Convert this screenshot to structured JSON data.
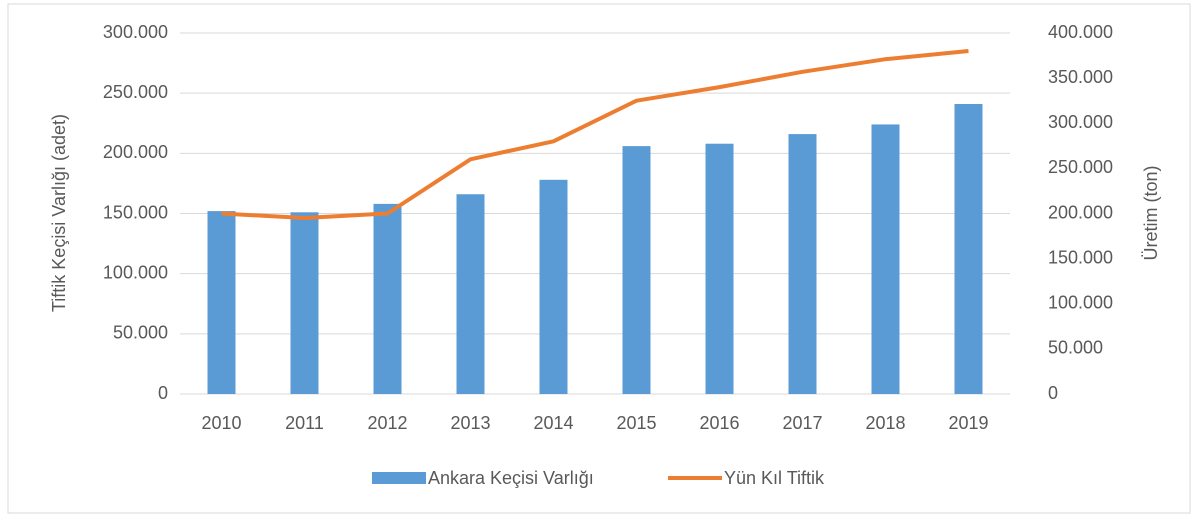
{
  "chart_data": {
    "type": "bar_line",
    "categories": [
      "2010",
      "2011",
      "2012",
      "2013",
      "2014",
      "2015",
      "2016",
      "2017",
      "2018",
      "2019"
    ],
    "series": [
      {
        "name": "Ankara Keçisi Varlığı",
        "type": "bar",
        "color": "#5b9bd5",
        "values": [
          152000,
          151000,
          158000,
          166000,
          178000,
          206000,
          208000,
          216000,
          224000,
          241000
        ]
      },
      {
        "name": "Yün Kıl Tiftik",
        "type": "line",
        "axis": "y2",
        "color": "#ed7d31",
        "values": [
          200000,
          195000,
          200000,
          260000,
          280000,
          325000,
          340000,
          357000,
          371000,
          380000
        ]
      }
    ],
    "ylabel": "Tiftik Keçisi Varlığı (adet)",
    "y2label": "Üretim (ton)",
    "ylim": [
      0,
      300000
    ],
    "yticks": [
      0,
      {
        "value": 50000,
        "label": "50.000"
      },
      {
        "value": 100000,
        "label": "100.000"
      },
      {
        "value": 150000,
        "label": "150.000"
      },
      {
        "value": 200000,
        "label": "200.000"
      },
      {
        "value": 250000,
        "label": "250.000"
      },
      {
        "value": 300000,
        "label": "300.000"
      }
    ],
    "y2lim": [
      0,
      400000
    ],
    "y2ticks": [
      0,
      {
        "value": 50000,
        "label": "50.000"
      },
      {
        "value": 100000,
        "label": "100.000"
      },
      {
        "value": 150000,
        "label": "150.000"
      },
      {
        "value": 200000,
        "label": "200.000"
      },
      {
        "value": 250000,
        "label": "250.000"
      },
      {
        "value": 300000,
        "label": "300.000"
      },
      {
        "value": 350000,
        "label": "350.000"
      },
      {
        "value": 400000,
        "label": "400.000"
      }
    ],
    "grid": true,
    "legend": "bottom"
  }
}
